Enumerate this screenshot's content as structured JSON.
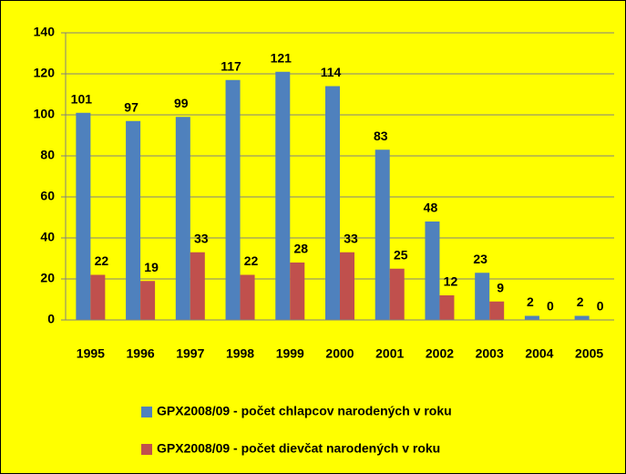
{
  "chart_data": {
    "type": "bar",
    "categories": [
      "1995",
      "1996",
      "1997",
      "1998",
      "1999",
      "2000",
      "2001",
      "2002",
      "2003",
      "2004",
      "2005"
    ],
    "series": [
      {
        "name": "GPX2008/09 - počet chlapcov narodených v roku",
        "color": "#4f81bd",
        "values": [
          101,
          97,
          99,
          117,
          121,
          114,
          83,
          48,
          23,
          2,
          2
        ]
      },
      {
        "name": "GPX2008/09 - počet dievčat narodených v roku",
        "color": "#c0504d",
        "values": [
          22,
          19,
          33,
          22,
          28,
          33,
          25,
          12,
          9,
          0,
          0
        ]
      }
    ],
    "ylim": [
      0,
      140
    ],
    "yticks": [
      0,
      20,
      40,
      60,
      80,
      100,
      120,
      140
    ],
    "grid": true,
    "legend": "bottom"
  }
}
